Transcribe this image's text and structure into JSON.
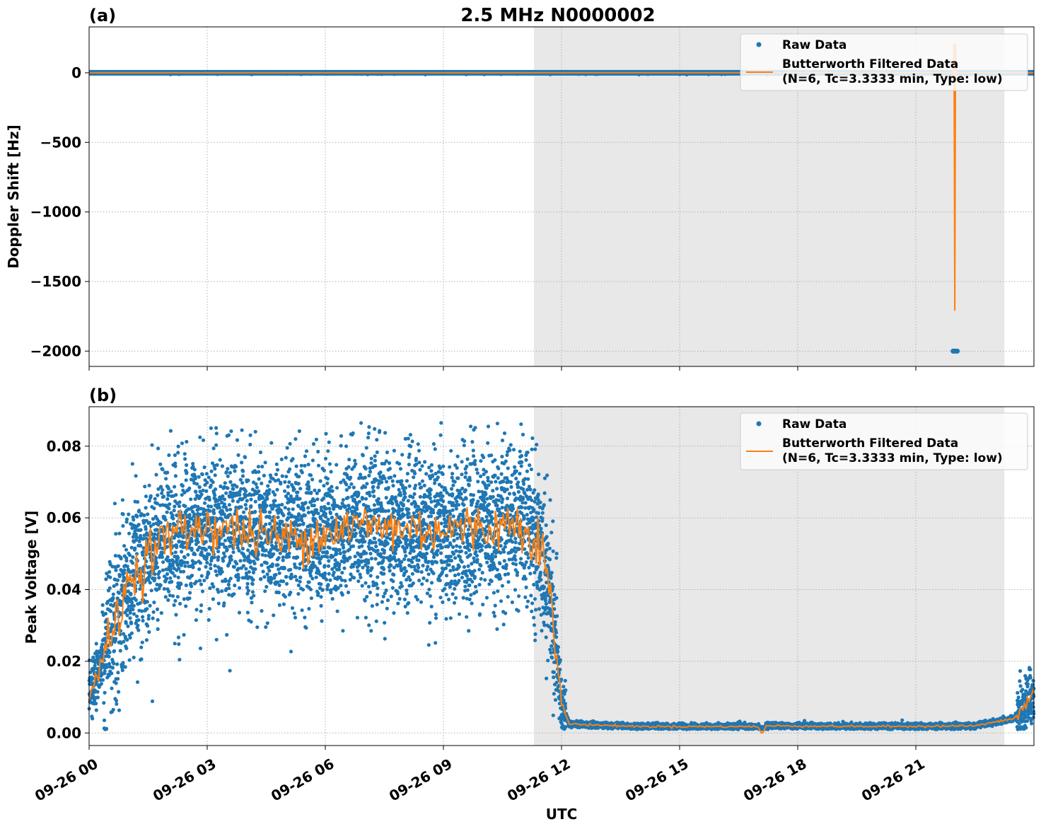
{
  "title": "2.5 MHz N0000002",
  "colors": {
    "raw": "#1f77b4",
    "filtered": "#ff7f0e",
    "night_shade": "#e8e8e8",
    "grid": "#b0b0b0"
  },
  "legend": {
    "raw": "Raw Data",
    "filtered_line1": "Butterworth Filtered Data",
    "filtered_line2": "(N=6, Tc=3.3333 min, Type: low)"
  },
  "xaxis": {
    "label": "UTC",
    "range_hours": [
      0,
      24
    ],
    "tick_hours": [
      0,
      3,
      6,
      9,
      12,
      15,
      18,
      21
    ],
    "tick_labels": [
      "09-26 00",
      "09-26 03",
      "09-26 06",
      "09-26 09",
      "09-26 12",
      "09-26 15",
      "09-26 18",
      "09-26 21"
    ]
  },
  "shaded_region_hours": [
    11.3,
    23.25
  ],
  "chart_data": [
    {
      "panel": "(a)",
      "type": "scatter",
      "ylabel": "Doppler Shift [Hz]",
      "ylim": [
        -2110,
        330
      ],
      "yticks": [
        0,
        -500,
        -1000,
        -1500,
        -2000
      ],
      "ytick_labels": [
        "0",
        "−500",
        "−1000",
        "−1500",
        "−2000"
      ],
      "grid": true,
      "legend_position": "top-right",
      "series": [
        {
          "name": "Raw Data",
          "kind": "points",
          "baseline": 0,
          "outlier": {
            "x_hours": 22.0,
            "y": -2000
          }
        },
        {
          "name": "Butterworth Filtered Data",
          "kind": "line",
          "points": [
            [
              0,
              0
            ],
            [
              21.95,
              0
            ],
            [
              21.97,
              210
            ],
            [
              21.99,
              -1710
            ],
            [
              22.01,
              210
            ],
            [
              22.03,
              0
            ],
            [
              24,
              0
            ]
          ]
        }
      ]
    },
    {
      "panel": "(b)",
      "type": "scatter",
      "ylabel": "Peak Voltage [V]",
      "ylim": [
        -0.0035,
        0.091
      ],
      "yticks": [
        0.0,
        0.02,
        0.04,
        0.06,
        0.08
      ],
      "ytick_labels": [
        "0.00",
        "0.02",
        "0.04",
        "0.06",
        "0.08"
      ],
      "grid": true,
      "legend_position": "top-right",
      "series": [
        {
          "name": "Raw Data",
          "kind": "points"
        },
        {
          "name": "Butterworth Filtered Data",
          "kind": "line",
          "trend": [
            [
              0,
              0.01
            ],
            [
              0.5,
              0.025
            ],
            [
              1,
              0.042
            ],
            [
              1.5,
              0.05
            ],
            [
              2,
              0.055
            ],
            [
              3,
              0.058
            ],
            [
              4,
              0.056
            ],
            [
              5,
              0.054
            ],
            [
              6,
              0.056
            ],
            [
              7,
              0.058
            ],
            [
              8,
              0.057
            ],
            [
              9,
              0.057
            ],
            [
              10,
              0.057
            ],
            [
              11,
              0.059
            ],
            [
              11.5,
              0.052
            ],
            [
              11.75,
              0.035
            ],
            [
              12.0,
              0.008
            ],
            [
              12.2,
              0.0025
            ],
            [
              14,
              0.0018
            ],
            [
              17,
              0.0018
            ],
            [
              17.1,
              -0.0005
            ],
            [
              17.2,
              0.002
            ],
            [
              20,
              0.0018
            ],
            [
              22.5,
              0.002
            ],
            [
              23.5,
              0.004
            ],
            [
              24,
              0.011
            ]
          ]
        }
      ]
    }
  ]
}
